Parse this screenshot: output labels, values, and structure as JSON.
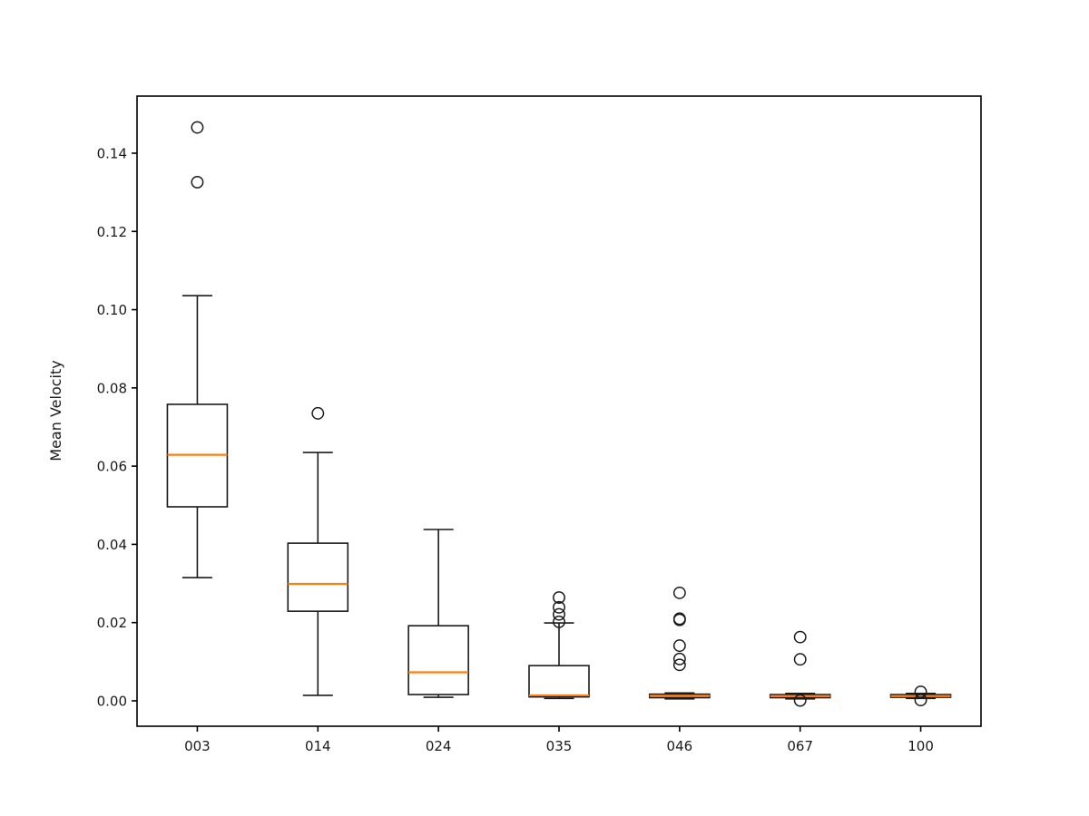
{
  "figure": {
    "background": "#ffffff"
  },
  "chart_data": {
    "type": "boxplot",
    "title": "",
    "xlabel": "",
    "ylabel": "Mean Velocity",
    "categories": [
      "003",
      "014",
      "024",
      "035",
      "046",
      "067",
      "100"
    ],
    "ylim": [
      -0.0065,
      0.1546
    ],
    "y_ticks": [
      0.0,
      0.02,
      0.04,
      0.06,
      0.08,
      0.1,
      0.12,
      0.14
    ],
    "y_tick_labels": [
      "0.00",
      "0.02",
      "0.04",
      "0.06",
      "0.08",
      "0.10",
      "0.12",
      "0.14"
    ],
    "grid": false,
    "legend": false,
    "colors": {
      "box_line": "#1a1a1a",
      "median_line": "#ff7f0e",
      "axis_line": "#000000",
      "text": "#1a1a1a"
    },
    "boxes": [
      {
        "label": "003",
        "whislo": 0.0315,
        "q1": 0.0496,
        "med": 0.0629,
        "q3": 0.0758,
        "whishi": 0.1036,
        "fliers": [
          0.1326,
          0.1466
        ]
      },
      {
        "label": "014",
        "whislo": 0.0014,
        "q1": 0.0229,
        "med": 0.0299,
        "q3": 0.0403,
        "whishi": 0.0635,
        "fliers": [
          0.0735
        ]
      },
      {
        "label": "024",
        "whislo": 0.0009,
        "q1": 0.0016,
        "med": 0.0073,
        "q3": 0.0192,
        "whishi": 0.0438,
        "fliers": []
      },
      {
        "label": "035",
        "whislo": 0.0006,
        "q1": 0.001,
        "med": 0.0014,
        "q3": 0.009,
        "whishi": 0.0199,
        "fliers": [
          0.0264,
          0.0239,
          0.0221,
          0.0202
        ]
      },
      {
        "label": "046",
        "whislo": 0.0005,
        "q1": 0.0008,
        "med": 0.0013,
        "q3": 0.0017,
        "whishi": 0.002,
        "fliers": [
          0.0276,
          0.021,
          0.0207,
          0.0141,
          0.0107,
          0.0092
        ]
      },
      {
        "label": "067",
        "whislo": 0.0005,
        "q1": 0.0008,
        "med": 0.0012,
        "q3": 0.0016,
        "whishi": 0.0019,
        "fliers": [
          0.0163,
          0.0106,
          0.0001
        ]
      },
      {
        "label": "100",
        "whislo": 0.0006,
        "q1": 0.0009,
        "med": 0.0012,
        "q3": 0.0016,
        "whishi": 0.0019,
        "fliers": [
          0.0023,
          0.0002
        ]
      }
    ]
  }
}
